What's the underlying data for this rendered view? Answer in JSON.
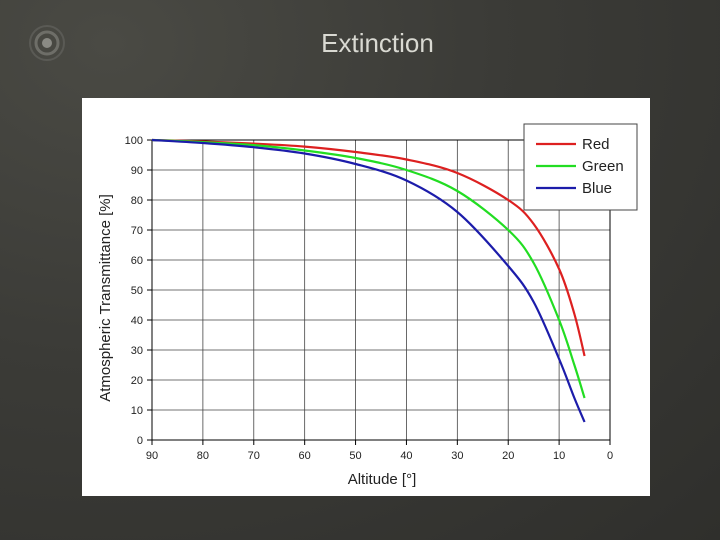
{
  "slide": {
    "title": "Extinction"
  },
  "colors": {
    "background": "#3b3b37",
    "title_text": "#d9d9d2"
  },
  "chart_data": {
    "type": "line",
    "xlabel": "Altitude [°]",
    "ylabel": "Atmospheric Transmittance [%]",
    "xlim": [
      90,
      0
    ],
    "ylim": [
      0,
      100
    ],
    "x_reversed": true,
    "x_ticks": [
      90,
      80,
      70,
      60,
      50,
      40,
      30,
      20,
      10,
      0
    ],
    "y_ticks": [
      0,
      10,
      20,
      30,
      40,
      50,
      60,
      70,
      80,
      90,
      100
    ],
    "grid": true,
    "legend_position": "top-right",
    "x": [
      90,
      80,
      70,
      60,
      50,
      40,
      30,
      20,
      15,
      10,
      7,
      5
    ],
    "series": [
      {
        "name": "Red",
        "color": "#dd2020",
        "values": [
          100,
          99.5,
          98.8,
          97.8,
          96,
          93.5,
          89,
          80,
          72,
          57,
          42,
          28
        ]
      },
      {
        "name": "Green",
        "color": "#22dd22",
        "values": [
          100,
          99.3,
          98.3,
          96.5,
          94,
          90,
          83,
          70,
          59,
          40,
          25,
          14
        ]
      },
      {
        "name": "Blue",
        "color": "#1c1caa",
        "values": [
          100,
          99,
          97.6,
          95.5,
          92,
          86.5,
          76,
          58,
          46,
          27,
          14,
          6
        ]
      }
    ]
  }
}
